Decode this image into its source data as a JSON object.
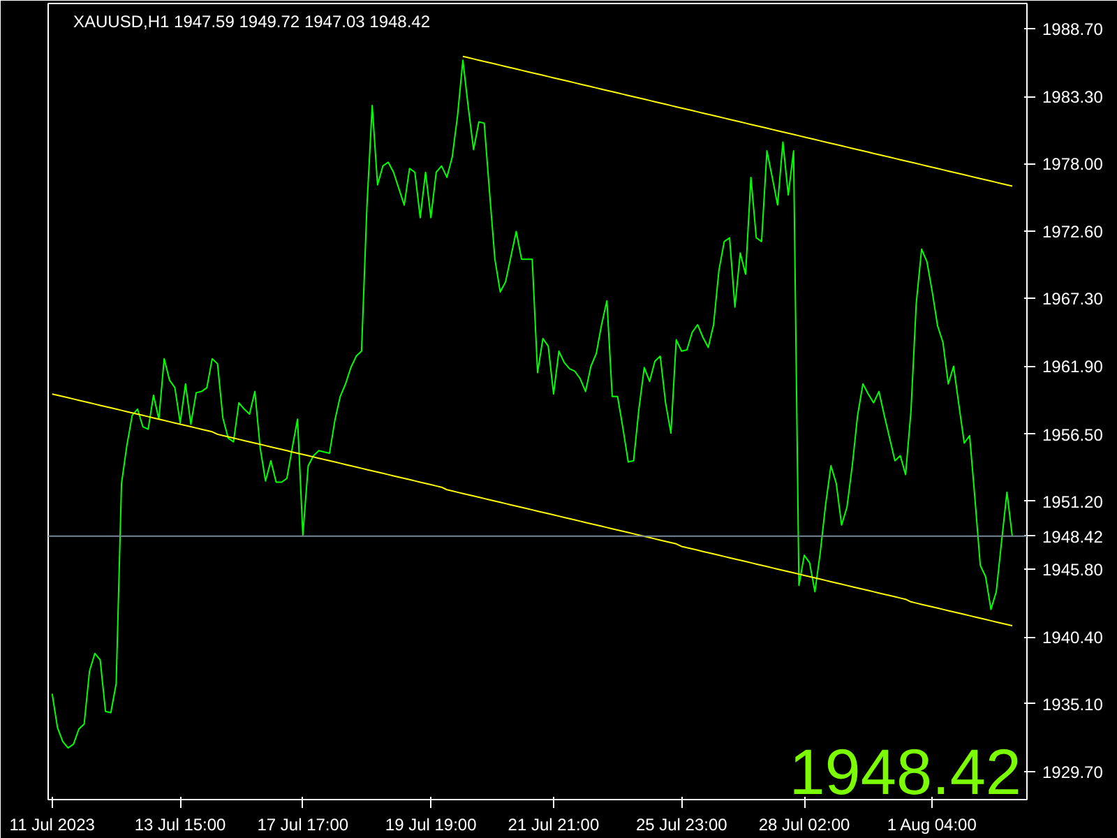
{
  "chart_data": {
    "type": "line",
    "title": "XAUUSD,H1  1947.59 1949.72 1947.03 1948.42",
    "annotations": [
      "1948.42"
    ],
    "categories": [
      "11 Jul 2023",
      null,
      null,
      null,
      null,
      null,
      null,
      null,
      null,
      null,
      null,
      null,
      null,
      null,
      null,
      null,
      null,
      null,
      null,
      null,
      null,
      null,
      null,
      null,
      "13 Jul 15:00",
      null,
      null,
      null,
      null,
      null,
      null,
      null,
      null,
      null,
      null,
      null,
      null,
      null,
      null,
      null,
      null,
      null,
      null,
      null,
      null,
      null,
      null,
      "17 Jul 17:00",
      null,
      null,
      null,
      null,
      null,
      null,
      null,
      null,
      null,
      null,
      null,
      null,
      null,
      null,
      null,
      null,
      null,
      null,
      null,
      null,
      null,
      null,
      null,
      "19 Jul 19:00",
      null,
      null,
      null,
      null,
      null,
      null,
      null,
      null,
      null,
      null,
      null,
      null,
      null,
      null,
      null,
      null,
      null,
      null,
      null,
      null,
      null,
      null,
      "21 Jul 21:00",
      null,
      null,
      null,
      null,
      null,
      null,
      null,
      null,
      null,
      null,
      null,
      null,
      null,
      null,
      null,
      null,
      null,
      null,
      null,
      null,
      null,
      null,
      null,
      "25 Jul 23:00",
      null,
      null,
      null,
      null,
      null,
      null,
      null,
      null,
      null,
      null,
      null,
      null,
      null,
      null,
      null,
      null,
      null,
      null,
      null,
      null,
      null,
      null,
      "28 Jul 02:00",
      null,
      null,
      null,
      null,
      null,
      null,
      null,
      null,
      null,
      null,
      null,
      null,
      null,
      null,
      null,
      null,
      null,
      null,
      null,
      null,
      null,
      null,
      null,
      "1 Aug 04:00",
      null,
      null,
      null,
      null,
      null,
      null,
      null,
      null,
      null,
      null,
      null,
      null,
      null,
      null,
      null
    ],
    "series": [
      {
        "color": "#00ff00",
        "values": [
          1935.9,
          1933.2,
          1932.1,
          1931.6,
          1931.9,
          1933.1,
          1933.5,
          1937.7,
          1939.1,
          1938.6,
          1934.5,
          1934.4,
          1936.7,
          1952.6,
          1955.6,
          1958.0,
          1958.5,
          1957.1,
          1956.9,
          1959.6,
          1957.7,
          1962.5,
          1960.8,
          1960.2,
          1957.4,
          1960.5,
          1957.3,
          1959.8,
          1959.9,
          1960.2,
          1962.5,
          1962.1,
          1957.8,
          1956.2,
          1955.9,
          1959.0,
          1958.5,
          1958.1,
          1959.9,
          1955.4,
          1952.8,
          1954.4,
          1952.7,
          1952.7,
          1953.0,
          1955.4,
          1957.7,
          1948.5,
          1954.0,
          1954.8,
          1955.2,
          1955.1,
          1955.0,
          1957.6,
          1959.5,
          1960.5,
          1961.8,
          1962.7,
          1963.1,
          1974.5,
          1982.6,
          1976.3,
          1977.8,
          1978.1,
          1977.3,
          1976.0,
          1974.7,
          1977.6,
          1977.3,
          1973.7,
          1977.3,
          1973.7,
          1977.3,
          1977.8,
          1976.9,
          1978.5,
          1981.8,
          1986.2,
          1982.5,
          1979.1,
          1981.3,
          1981.2,
          1975.7,
          1970.4,
          1967.8,
          1968.6,
          1970.6,
          1972.6,
          1970.4,
          1970.4,
          1970.4,
          1961.4,
          1964.1,
          1963.5,
          1959.7,
          1963.1,
          1962.2,
          1961.7,
          1961.5,
          1960.9,
          1959.9,
          1961.9,
          1962.9,
          1965.2,
          1967.1,
          1959.5,
          1959.5,
          1957.0,
          1954.3,
          1954.4,
          1958.5,
          1961.8,
          1960.7,
          1962.3,
          1962.7,
          1959.0,
          1956.6,
          1964.0,
          1963.1,
          1963.2,
          1964.6,
          1965.2,
          1964.2,
          1963.4,
          1965.2,
          1969.5,
          1971.8,
          1972.1,
          1966.6,
          1970.9,
          1969.2,
          1976.9,
          1972.1,
          1971.8,
          1979.0,
          1976.9,
          1974.7,
          1979.7,
          1975.5,
          1979.0,
          1944.5,
          1946.9,
          1946.3,
          1944.0,
          1947.1,
          1950.9,
          1954.0,
          1952.6,
          1949.3,
          1950.7,
          1954.0,
          1958.0,
          1960.5,
          1959.7,
          1959.0,
          1959.9,
          1958.0,
          1956.2,
          1954.4,
          1954.8,
          1953.3,
          1958.3,
          1966.9,
          1971.2,
          1970.2,
          1967.8,
          1965.1,
          1963.8,
          1960.5,
          1961.9,
          1958.8,
          1955.8,
          1956.4,
          1951.4,
          1946.1,
          1945.2,
          1942.6,
          1944.0,
          1948.0,
          1951.9,
          1948.4
        ]
      },
      {
        "color": "#ffff00",
        "values": [
          null,
          null,
          null,
          null,
          null,
          null,
          null,
          null,
          null,
          null,
          null,
          null,
          null,
          null,
          null,
          null,
          null,
          null,
          null,
          null,
          null,
          null,
          null,
          null,
          null,
          null,
          null,
          null,
          null,
          null,
          null,
          null,
          null,
          null,
          null,
          null,
          null,
          null,
          null,
          null,
          null,
          null,
          null,
          null,
          null,
          null,
          null,
          null,
          null,
          null,
          null,
          null,
          null,
          null,
          null,
          null,
          null,
          null,
          null,
          null,
          null,
          null,
          null,
          null,
          null,
          null,
          null,
          null,
          null,
          null,
          null,
          null,
          null,
          null,
          null,
          null,
          null,
          1986.5,
          1986.4,
          1986.3,
          1986.2,
          1986.1,
          1986.0,
          1985.9,
          1985.8,
          1985.7,
          1985.6,
          1985.5,
          1985.4,
          1985.3,
          1985.2,
          1985.1,
          1985.0,
          1984.9,
          1984.8,
          1984.7,
          1984.6,
          1984.5,
          1984.4,
          1984.3,
          1984.2,
          1984.1,
          1984.0,
          1983.9,
          1983.8,
          1983.7,
          1983.6,
          1983.5,
          1983.4,
          1983.3,
          1983.2,
          1983.1,
          1983.0,
          1982.9,
          1982.8,
          1982.7,
          1982.6,
          1982.5,
          1982.4,
          1982.3,
          1982.2,
          1982.1,
          1982.0,
          1981.9,
          1981.8,
          1981.7,
          1981.6,
          1981.5,
          1981.4,
          1981.3,
          1981.2,
          1981.1,
          1981.0,
          1980.9,
          1980.8,
          1980.7,
          1980.6,
          1980.5,
          1980.4,
          1980.3,
          1980.2,
          1980.1,
          1980.0,
          1979.9,
          1979.8,
          1979.7,
          1979.6,
          1979.5,
          1979.4,
          1979.3,
          1979.2,
          1979.1,
          1979.0,
          1978.9,
          1978.8,
          1978.7,
          1978.6,
          1978.5,
          1978.4,
          1978.3,
          1978.2,
          1978.1,
          1978.0,
          1977.9,
          1977.8,
          1977.7,
          1977.6,
          1977.5,
          1977.4,
          1977.3,
          1977.2,
          1977.1,
          1977.0,
          1976.9,
          1976.8,
          1976.7,
          1976.6,
          1976.5,
          1976.4,
          1976.3,
          1976.2
        ]
      },
      {
        "color": "#ffff00",
        "values": [
          1959.7,
          1959.6,
          1959.5,
          1959.4,
          1959.3,
          1959.2,
          1959.1,
          1959.0,
          1958.9,
          1958.8,
          1958.7,
          1958.6,
          1958.5,
          1958.4,
          1958.3,
          1958.2,
          1958.1,
          1958.0,
          1957.9,
          1957.8,
          1957.7,
          1957.6,
          1957.5,
          1957.4,
          1957.3,
          1957.2,
          1957.1,
          1957.0,
          1956.9,
          1956.8,
          1956.7,
          1956.5,
          1956.4,
          1956.3,
          1956.2,
          1956.1,
          1956.0,
          1955.9,
          1955.8,
          1955.7,
          1955.6,
          1955.5,
          1955.4,
          1955.3,
          1955.2,
          1955.1,
          1955.0,
          1954.9,
          1954.8,
          1954.7,
          1954.6,
          1954.5,
          1954.4,
          1954.3,
          1954.2,
          1954.1,
          1954.0,
          1953.9,
          1953.8,
          1953.7,
          1953.6,
          1953.5,
          1953.4,
          1953.3,
          1953.2,
          1953.1,
          1953.0,
          1952.9,
          1952.8,
          1952.7,
          1952.6,
          1952.5,
          1952.4,
          1952.3,
          1952.1,
          1952.0,
          1951.9,
          1951.8,
          1951.7,
          1951.6,
          1951.5,
          1951.4,
          1951.3,
          1951.2,
          1951.1,
          1951.0,
          1950.9,
          1950.8,
          1950.7,
          1950.6,
          1950.5,
          1950.4,
          1950.3,
          1950.2,
          1950.1,
          1950.0,
          1949.9,
          1949.8,
          1949.7,
          1949.6,
          1949.5,
          1949.4,
          1949.3,
          1949.2,
          1949.1,
          1949.0,
          1948.9,
          1948.8,
          1948.7,
          1948.6,
          1948.5,
          1948.4,
          1948.3,
          1948.2,
          1948.1,
          1948.0,
          1947.9,
          1947.8,
          1947.6,
          1947.5,
          1947.4,
          1947.3,
          1947.2,
          1947.1,
          1947.0,
          1946.9,
          1946.8,
          1946.7,
          1946.6,
          1946.5,
          1946.4,
          1946.3,
          1946.2,
          1946.1,
          1946.0,
          1945.9,
          1945.8,
          1945.7,
          1945.6,
          1945.5,
          1945.4,
          1945.3,
          1945.2,
          1945.1,
          1945.0,
          1944.9,
          1944.8,
          1944.7,
          1944.6,
          1944.5,
          1944.4,
          1944.3,
          1944.2,
          1944.1,
          1944.0,
          1943.9,
          1943.8,
          1943.7,
          1943.6,
          1943.5,
          1943.4,
          1943.2,
          1943.1,
          1943.0,
          1942.9,
          1942.8,
          1942.7,
          1942.6,
          1942.5,
          1942.4,
          1942.3,
          1942.2,
          1942.1,
          1942.0,
          1941.9,
          1941.8,
          1941.7,
          1941.6,
          1941.5,
          1941.4,
          1941.3
        ]
      }
    ],
    "ylim": [
      1927.5,
      1990.7
    ],
    "yticks": [
      {
        "value": 1929.7,
        "label": "1929.70"
      },
      {
        "value": 1935.1,
        "label": "1935.10"
      },
      {
        "value": 1940.4,
        "label": "1940.40"
      },
      {
        "value": 1945.8,
        "label": "1945.80"
      },
      {
        "value": 1951.2,
        "label": "1951.20"
      },
      {
        "value": 1956.5,
        "label": "1956.50"
      },
      {
        "value": 1961.9,
        "label": "1961.90"
      },
      {
        "value": 1967.3,
        "label": "1967.30"
      },
      {
        "value": 1972.6,
        "label": "1972.60"
      },
      {
        "value": 1978.0,
        "label": "1978.00"
      },
      {
        "value": 1983.3,
        "label": "1983.30"
      },
      {
        "value": 1988.7,
        "label": "1988.70"
      }
    ],
    "ref_lines": [
      {
        "axis": "y",
        "value": 1948.42,
        "label": "1948.42",
        "color": "#778899"
      }
    ],
    "grid": false
  }
}
